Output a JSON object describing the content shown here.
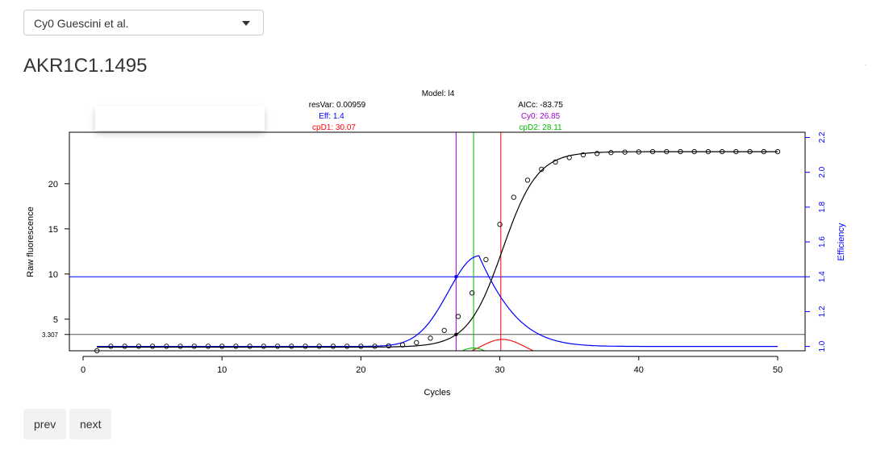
{
  "selector": {
    "value": "Cy0 Guescini et al."
  },
  "page_title": "AKR1C1.1495",
  "buttons": {
    "prev": "prev",
    "next": "next"
  },
  "chart_data": {
    "type": "line",
    "title": "Model: l4",
    "xlabel": "Cycles",
    "ylabel": "Raw fluorescence",
    "y2label": "Efficiency",
    "xlim": [
      0,
      50
    ],
    "ylim": [
      1.5,
      25.7
    ],
    "y2lim": [
      0.975,
      2.23
    ],
    "x_ticks": [
      "0",
      "10",
      "20",
      "30",
      "40",
      "50"
    ],
    "y_ticks": [
      "5",
      "10",
      "15",
      "20"
    ],
    "y2_ticks": [
      "1.0",
      "1.2",
      "1.4",
      "1.6",
      "1.8",
      "2.0",
      "2.2"
    ],
    "threshold_label": "3.307",
    "threshold_value": 3.307,
    "stats": {
      "resvar": "resVar: 0.00959",
      "aicc": "AICc: -83.75",
      "eff": "Eff: 1.4",
      "cy0": "Cy0: 26.85",
      "cpd1": "cpD1: 30.07",
      "cpd2": "cpD2: 28.11"
    },
    "vertical_lines": {
      "cy0": 26.85,
      "cpd2": 28.11,
      "cpd1": 30.07
    },
    "efficiency_level": 1.4,
    "model": {
      "bottom": 1.9,
      "top": 23.55,
      "ec50": 30.2,
      "slope": 1.25
    },
    "observed": {
      "x": [
        1,
        2,
        3,
        4,
        5,
        6,
        7,
        8,
        9,
        10,
        11,
        12,
        13,
        14,
        15,
        16,
        17,
        18,
        19,
        20,
        21,
        22,
        23,
        24,
        25,
        26,
        27,
        28,
        29,
        30,
        31,
        32,
        33,
        34,
        35,
        36,
        37,
        38,
        39,
        40,
        41,
        42,
        43,
        44,
        45,
        46,
        47,
        48,
        49,
        50
      ],
      "y": [
        1.5,
        2.0,
        2.0,
        2.0,
        2.0,
        2.0,
        2.0,
        2.0,
        2.0,
        2.0,
        2.0,
        2.0,
        2.0,
        2.0,
        2.0,
        2.0,
        2.0,
        2.0,
        2.0,
        2.0,
        2.0,
        2.05,
        2.15,
        2.4,
        2.9,
        3.75,
        5.3,
        7.9,
        11.6,
        15.5,
        18.5,
        20.4,
        21.6,
        22.4,
        22.9,
        23.2,
        23.35,
        23.45,
        23.5,
        23.52,
        23.55,
        23.55,
        23.55,
        23.55,
        23.55,
        23.55,
        23.55,
        23.55,
        23.55,
        23.55
      ]
    },
    "colors": {
      "fit": "#000000",
      "efficiency": "#0000ff",
      "cy0": "#9900cc",
      "cpd1": "#ff0000",
      "cpd2": "#00bb00",
      "threshold": "#555555"
    }
  }
}
